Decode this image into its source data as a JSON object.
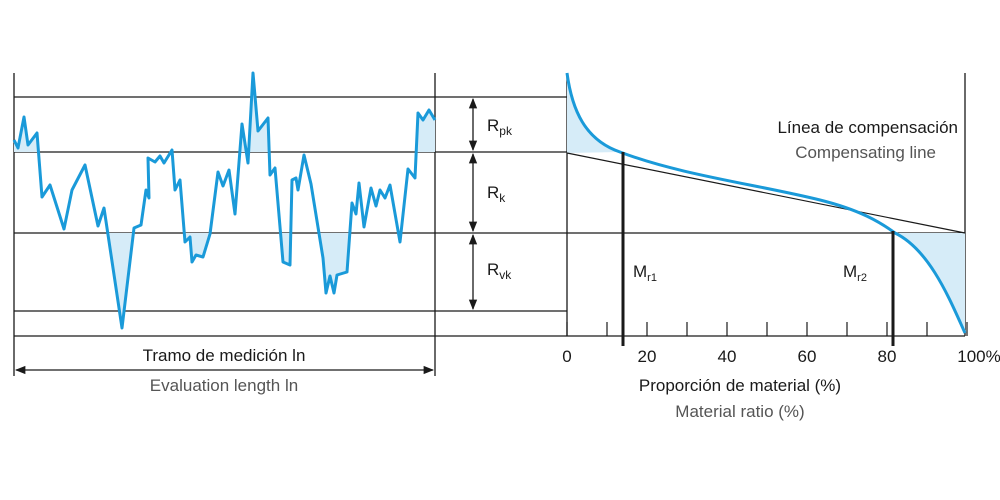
{
  "left": {
    "label_es": "Tramo de medición ln",
    "label_en": "Evaluation length ln"
  },
  "parameters": [
    {
      "main": "R",
      "sub": "pk"
    },
    {
      "main": "R",
      "sub": "k"
    },
    {
      "main": "R",
      "sub": "vk"
    }
  ],
  "right": {
    "line_es": "Línea de compensación",
    "line_en": "Compensating line",
    "markers": [
      {
        "main": "M",
        "sub": "r1"
      },
      {
        "main": "M",
        "sub": "r2"
      }
    ],
    "axis_ticks": [
      "0",
      "20",
      "40",
      "60",
      "80",
      "100%"
    ],
    "axis_title_es": "Proporción de material (%)",
    "axis_title_en": "Material ratio (%)"
  }
}
